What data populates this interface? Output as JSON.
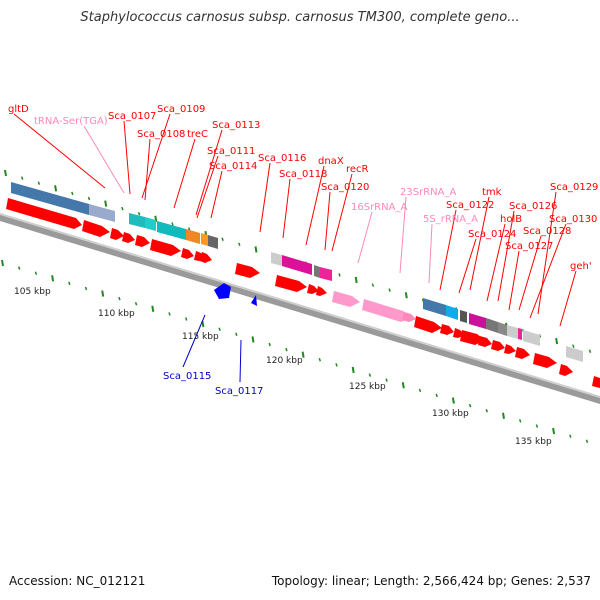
{
  "title": "Staphylococcus carnosus subsp. carnosus TM300, complete geno...",
  "footer": {
    "accession": "Accession: NC_012121",
    "summary": "Topology: linear; Length: 2,566,424 bp; Genes: 2,537"
  },
  "colors": {
    "gene": "#ff0000",
    "rna": "#ff99cc",
    "reverse_strand_gene": "#0000ff",
    "backbone": "#888888",
    "tick": "#228822"
  },
  "scale": [
    "105 kbp",
    "110 kbp",
    "115 kbp",
    "120 kbp",
    "125 kbp",
    "130 kbp",
    "135 kbp"
  ],
  "labels": [
    {
      "text": "gltD",
      "color": "#ff0000"
    },
    {
      "text": "tRNA-Ser(TGA)",
      "color": "#ff88bb"
    },
    {
      "text": "Sca_0107",
      "color": "#ff0000"
    },
    {
      "text": "Sca_0109",
      "color": "#ff0000"
    },
    {
      "text": "Sca_0108",
      "color": "#ff0000"
    },
    {
      "text": "treC",
      "color": "#ff0000"
    },
    {
      "text": "Sca_0113",
      "color": "#ff0000"
    },
    {
      "text": "Sca_0111",
      "color": "#ff0000"
    },
    {
      "text": "Sca_0114",
      "color": "#ff0000"
    },
    {
      "text": "Sca_0116",
      "color": "#ff0000"
    },
    {
      "text": "dnaX",
      "color": "#ff0000"
    },
    {
      "text": "Sca_0118",
      "color": "#ff0000"
    },
    {
      "text": "recR",
      "color": "#ff0000"
    },
    {
      "text": "Sca_0120",
      "color": "#ff0000"
    },
    {
      "text": "23SrRNA_A",
      "color": "#ff88bb"
    },
    {
      "text": "16SrRNA_A",
      "color": "#ff88bb"
    },
    {
      "text": "tmk",
      "color": "#ff0000"
    },
    {
      "text": "Sca_0129",
      "color": "#ff0000"
    },
    {
      "text": "Sca_0122",
      "color": "#ff0000"
    },
    {
      "text": "Sca_0126",
      "color": "#ff0000"
    },
    {
      "text": "5S_rRNA_A",
      "color": "#ff88bb"
    },
    {
      "text": "holB",
      "color": "#ff0000"
    },
    {
      "text": "Sca_0130",
      "color": "#ff0000"
    },
    {
      "text": "Sca_0124",
      "color": "#ff0000"
    },
    {
      "text": "Sca_0128",
      "color": "#ff0000"
    },
    {
      "text": "Sca_0127",
      "color": "#ff0000"
    },
    {
      "text": "geh'",
      "color": "#ff0000"
    },
    {
      "text": "Sca_0115",
      "color": "#0000cc"
    },
    {
      "text": "Sca_0117",
      "color": "#0000cc"
    }
  ]
}
